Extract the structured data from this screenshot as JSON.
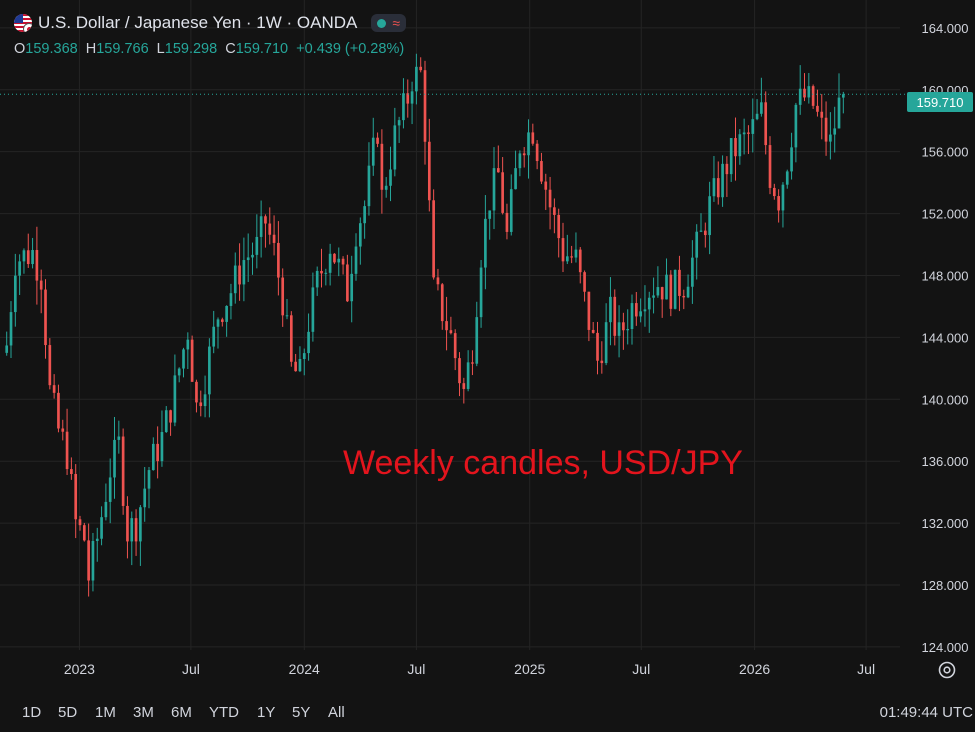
{
  "header": {
    "title": "U.S. Dollar / Japanese Yen · 1W · OANDA",
    "flag_icon": "usd-jpy-flag-icon",
    "status_icons": [
      "market-open-dot-icon",
      "data-delay-wave-icon"
    ]
  },
  "ohlc": {
    "o_label": "O",
    "o_value": "159.368",
    "h_label": "H",
    "h_value": "159.766",
    "l_label": "L",
    "l_value": "159.298",
    "c_label": "C",
    "c_value": "159.710",
    "change": "+0.439 (+0.28%)"
  },
  "annotation": "Weekly candles, USD/JPY",
  "last_price_label": "159.710",
  "range_buttons": [
    "1D",
    "5D",
    "1M",
    "3M",
    "6M",
    "YTD",
    "1Y",
    "5Y",
    "All"
  ],
  "clock": "01:49:44 UTC",
  "colors": {
    "up": "#26a69a",
    "down": "#ef5350",
    "background": "#131313",
    "grid": "#242424",
    "annotation": "#e3141d",
    "last_price": "#26a69a"
  },
  "chart_data": {
    "type": "candlestick",
    "timeframe": "1W",
    "symbol": "USD/JPY",
    "source": "OANDA",
    "y_ticks": [
      124,
      128,
      132,
      136,
      140,
      144,
      148,
      152,
      156,
      160,
      164
    ],
    "y_tick_labels": [
      "124.000",
      "128.000",
      "132.000",
      "136.000",
      "140.000",
      "144.000",
      "148.000",
      "152.000",
      "156.000",
      "160.000",
      "164.000"
    ],
    "ylim": [
      123.8,
      165.8
    ],
    "x_tick_labels": [
      {
        "label": "2023",
        "date": "2023-01-01"
      },
      {
        "label": "Jul",
        "date": "2023-07-01"
      },
      {
        "label": "2024",
        "date": "2024-01-01"
      },
      {
        "label": "Jul",
        "date": "2024-07-01"
      },
      {
        "label": "2025",
        "date": "2025-01-01"
      },
      {
        "label": "Jul",
        "date": "2025-07-01"
      },
      {
        "label": "2026",
        "date": "2026-01-01"
      },
      {
        "label": "Jul",
        "date": "2026-07-01"
      }
    ],
    "xlim": [
      "2022-08-30",
      "2026-08-25"
    ],
    "last_close": 159.71,
    "close_path": [
      [
        "2022-09-05",
        143.5
      ],
      [
        "2022-09-19",
        149.0
      ],
      [
        "2022-10-17",
        149.5
      ],
      [
        "2022-10-31",
        148.0
      ],
      [
        "2022-11-14",
        140.5
      ],
      [
        "2022-11-28",
        138.0
      ],
      [
        "2022-12-12",
        136.5
      ],
      [
        "2022-12-26",
        132.0
      ],
      [
        "2023-01-09",
        131.0
      ],
      [
        "2023-01-16",
        128.5
      ],
      [
        "2023-01-30",
        131.0
      ],
      [
        "2023-02-20",
        135.5
      ],
      [
        "2023-03-06",
        137.0
      ],
      [
        "2023-03-20",
        131.5
      ],
      [
        "2023-04-03",
        132.0
      ],
      [
        "2023-04-24",
        135.5
      ],
      [
        "2023-05-15",
        137.5
      ],
      [
        "2023-05-29",
        139.5
      ],
      [
        "2023-06-26",
        144.5
      ],
      [
        "2023-07-10",
        139.5
      ],
      [
        "2023-07-24",
        141.5
      ],
      [
        "2023-08-14",
        145.5
      ],
      [
        "2023-09-04",
        147.0
      ],
      [
        "2023-09-25",
        149.0
      ],
      [
        "2023-10-16",
        149.8
      ],
      [
        "2023-10-30",
        151.5
      ],
      [
        "2023-11-13",
        149.5
      ],
      [
        "2023-11-27",
        146.5
      ],
      [
        "2023-12-11",
        142.0
      ],
      [
        "2023-12-25",
        141.5
      ],
      [
        "2024-01-08",
        145.0
      ],
      [
        "2024-01-22",
        147.5
      ],
      [
        "2024-02-12",
        150.0
      ],
      [
        "2024-03-11",
        147.0
      ],
      [
        "2024-03-25",
        151.0
      ],
      [
        "2024-04-08",
        152.5
      ],
      [
        "2024-04-29",
        157.5
      ],
      [
        "2024-05-06",
        153.0
      ],
      [
        "2024-05-27",
        157.0
      ],
      [
        "2024-06-17",
        159.5
      ],
      [
        "2024-06-24",
        160.8
      ],
      [
        "2024-07-08",
        161.0
      ],
      [
        "2024-07-15",
        157.5
      ],
      [
        "2024-07-29",
        147.0
      ],
      [
        "2024-08-05",
        146.5
      ],
      [
        "2024-08-26",
        144.0
      ],
      [
        "2024-09-09",
        141.5
      ],
      [
        "2024-09-16",
        140.5
      ],
      [
        "2024-09-30",
        143.5
      ],
      [
        "2024-10-14",
        149.5
      ],
      [
        "2024-10-28",
        153.0
      ],
      [
        "2024-11-11",
        154.5
      ],
      [
        "2024-11-25",
        150.5
      ],
      [
        "2024-12-16",
        156.5
      ],
      [
        "2025-01-06",
        157.5
      ],
      [
        "2025-01-20",
        155.0
      ],
      [
        "2025-02-03",
        152.5
      ],
      [
        "2025-02-24",
        149.5
      ],
      [
        "2025-03-17",
        149.0
      ],
      [
        "2025-04-07",
        145.0
      ],
      [
        "2025-04-21",
        142.5
      ],
      [
        "2025-05-12",
        145.5
      ],
      [
        "2025-05-26",
        144.0
      ],
      [
        "2025-06-16",
        146.0
      ],
      [
        "2025-07-07",
        147.0
      ],
      [
        "2025-07-28",
        147.5
      ],
      [
        "2025-08-18",
        147.0
      ],
      [
        "2025-09-08",
        147.5
      ],
      [
        "2025-10-06",
        150.5
      ],
      [
        "2025-10-20",
        152.5
      ],
      [
        "2025-11-10",
        154.5
      ],
      [
        "2025-11-24",
        155.8
      ],
      [
        "2025-12-08",
        156.5
      ],
      [
        "2025-12-22",
        157.0
      ],
      [
        "2026-01-12",
        158.5
      ],
      [
        "2026-01-26",
        154.5
      ],
      [
        "2026-02-09",
        153.0
      ],
      [
        "2026-02-23",
        155.5
      ],
      [
        "2026-03-09",
        159.0
      ],
      [
        "2026-03-23",
        159.5
      ],
      [
        "2026-04-06",
        159.0
      ],
      [
        "2026-04-20",
        157.5
      ],
      [
        "2026-05-04",
        156.5
      ],
      [
        "2026-05-18",
        159.0
      ],
      [
        "2026-05-25",
        159.71
      ]
    ]
  }
}
